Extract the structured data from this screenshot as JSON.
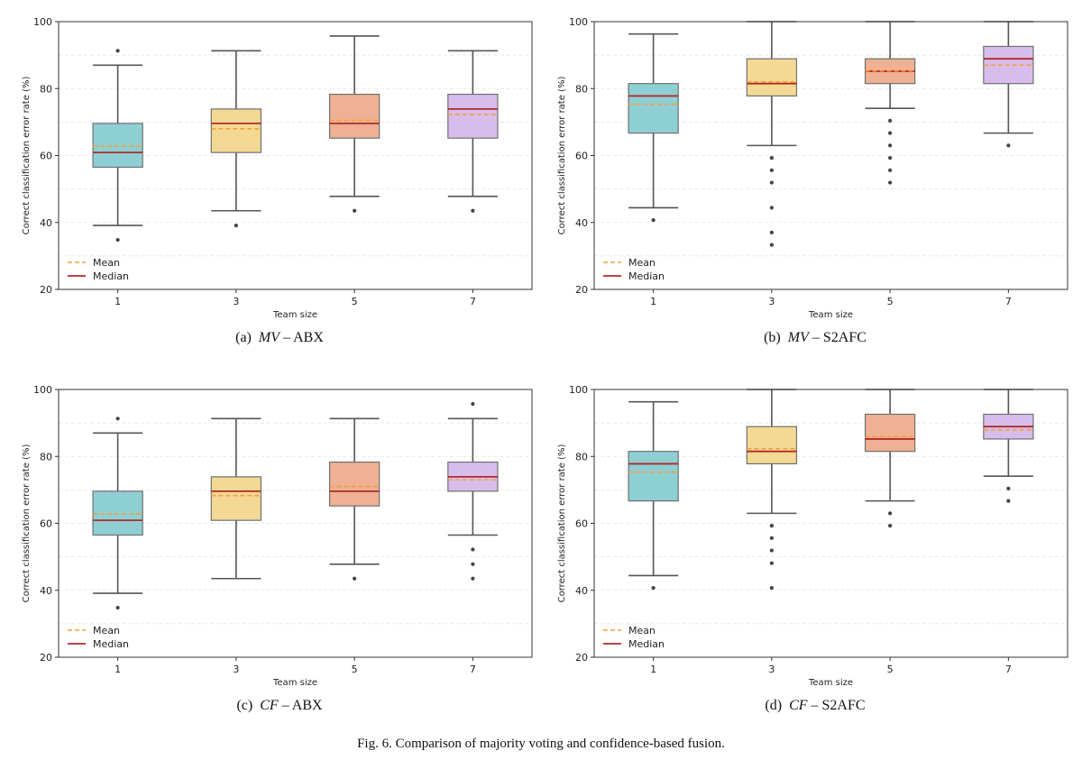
{
  "figure_caption": "Fig. 6.  Comparison of majority voting and confidence-based fusion.",
  "chart_data": [
    {
      "type": "box",
      "caption": {
        "label": "(a)",
        "math": "MV",
        "dash": "–",
        "test": "ABX"
      },
      "xlabel": "Team size",
      "ylabel": "Correct classification error rate (%)",
      "ylim": [
        20,
        100
      ],
      "yticks": [
        20,
        40,
        60,
        80,
        100
      ],
      "categories": [
        "1",
        "3",
        "5",
        "7"
      ],
      "colors": [
        "#8ecfd4",
        "#f3d993",
        "#eeb193",
        "#d8bdec"
      ],
      "legend": {
        "position": "lower-left",
        "mean_label": "Mean",
        "median_label": "Median",
        "mean_color": "#f5a03c",
        "median_color": "#b02a2a"
      },
      "grid": "horizontal-dashed",
      "boxes": [
        {
          "whislo": 39.1,
          "q1": 56.5,
          "med": 60.9,
          "q3": 69.6,
          "whishi": 87.0,
          "mean": 62.8,
          "fliers": [
            91.3,
            34.8
          ]
        },
        {
          "whislo": 43.5,
          "q1": 60.9,
          "med": 69.6,
          "q3": 73.9,
          "whishi": 91.3,
          "mean": 68.0,
          "fliers": [
            39.1
          ]
        },
        {
          "whislo": 47.8,
          "q1": 65.2,
          "med": 69.6,
          "q3": 78.3,
          "whishi": 95.7,
          "mean": 70.5,
          "fliers": [
            43.5
          ]
        },
        {
          "whislo": 47.8,
          "q1": 65.2,
          "med": 73.9,
          "q3": 78.3,
          "whishi": 91.3,
          "mean": 72.2,
          "fliers": [
            43.5
          ]
        }
      ]
    },
    {
      "type": "box",
      "caption": {
        "label": "(b)",
        "math": "MV",
        "dash": "–",
        "test": "S2AFC"
      },
      "xlabel": "Team size",
      "ylabel": "Correct classification error rate (%)",
      "ylim": [
        20,
        100
      ],
      "yticks": [
        20,
        40,
        60,
        80,
        100
      ],
      "categories": [
        "1",
        "3",
        "5",
        "7"
      ],
      "colors": [
        "#8ecfd4",
        "#f3d993",
        "#eeb193",
        "#d8bdec"
      ],
      "legend": {
        "position": "lower-left",
        "mean_label": "Mean",
        "median_label": "Median",
        "mean_color": "#f5a03c",
        "median_color": "#b02a2a"
      },
      "grid": "horizontal-dashed",
      "boxes": [
        {
          "whislo": 44.4,
          "q1": 66.7,
          "med": 77.8,
          "q3": 81.5,
          "whishi": 96.3,
          "mean": 75.3,
          "fliers": [
            40.7
          ]
        },
        {
          "whislo": 63.0,
          "q1": 77.8,
          "med": 81.5,
          "q3": 88.9,
          "whishi": 100.0,
          "mean": 82.0,
          "fliers": [
            59.3,
            55.6,
            51.9,
            44.4,
            37.0,
            33.3
          ]
        },
        {
          "whislo": 74.1,
          "q1": 81.5,
          "med": 85.2,
          "q3": 88.9,
          "whishi": 100.0,
          "mean": 85.3,
          "fliers": [
            70.4,
            66.7,
            63.0,
            59.3,
            55.6,
            51.9
          ]
        },
        {
          "whislo": 66.7,
          "q1": 81.5,
          "med": 88.9,
          "q3": 92.6,
          "whishi": 100.0,
          "mean": 87.0,
          "fliers": [
            63.0
          ]
        }
      ]
    },
    {
      "type": "box",
      "caption": {
        "label": "(c)",
        "math": "CF",
        "dash": "–",
        "test": "ABX"
      },
      "xlabel": "Team size",
      "ylabel": "Correct classification error rate (%)",
      "ylim": [
        20,
        100
      ],
      "yticks": [
        20,
        40,
        60,
        80,
        100
      ],
      "categories": [
        "1",
        "3",
        "5",
        "7"
      ],
      "colors": [
        "#8ecfd4",
        "#f3d993",
        "#eeb193",
        "#d8bdec"
      ],
      "legend": {
        "position": "lower-left",
        "mean_label": "Mean",
        "median_label": "Median",
        "mean_color": "#f5a03c",
        "median_color": "#b02a2a"
      },
      "grid": "horizontal-dashed",
      "boxes": [
        {
          "whislo": 39.1,
          "q1": 56.5,
          "med": 60.9,
          "q3": 69.6,
          "whishi": 87.0,
          "mean": 62.8,
          "fliers": [
            91.3,
            34.8
          ]
        },
        {
          "whislo": 43.5,
          "q1": 60.9,
          "med": 69.6,
          "q3": 73.9,
          "whishi": 91.3,
          "mean": 68.3,
          "fliers": []
        },
        {
          "whislo": 47.8,
          "q1": 65.2,
          "med": 69.6,
          "q3": 78.3,
          "whishi": 91.3,
          "mean": 71.0,
          "fliers": [
            43.5
          ]
        },
        {
          "whislo": 56.5,
          "q1": 69.6,
          "med": 73.9,
          "q3": 78.3,
          "whishi": 91.3,
          "mean": 73.0,
          "fliers": [
            95.7,
            52.2,
            47.8,
            43.5
          ]
        }
      ]
    },
    {
      "type": "box",
      "caption": {
        "label": "(d)",
        "math": "CF",
        "dash": "–",
        "test": "S2AFC"
      },
      "xlabel": "Team size",
      "ylabel": "Correct classification error rate (%)",
      "ylim": [
        20,
        100
      ],
      "yticks": [
        20,
        40,
        60,
        80,
        100
      ],
      "categories": [
        "1",
        "3",
        "5",
        "7"
      ],
      "colors": [
        "#8ecfd4",
        "#f3d993",
        "#eeb193",
        "#d8bdec"
      ],
      "legend": {
        "position": "lower-left",
        "mean_label": "Mean",
        "median_label": "Median",
        "mean_color": "#f5a03c",
        "median_color": "#b02a2a"
      },
      "grid": "horizontal-dashed",
      "boxes": [
        {
          "whislo": 44.4,
          "q1": 66.7,
          "med": 77.8,
          "q3": 81.5,
          "whishi": 96.3,
          "mean": 75.3,
          "fliers": [
            40.7
          ]
        },
        {
          "whislo": 63.0,
          "q1": 77.8,
          "med": 81.5,
          "q3": 88.9,
          "whishi": 100.0,
          "mean": 82.3,
          "fliers": [
            59.3,
            55.6,
            51.9,
            48.1,
            40.7
          ]
        },
        {
          "whislo": 66.7,
          "q1": 81.5,
          "med": 85.2,
          "q3": 92.6,
          "whishi": 100.0,
          "mean": 85.9,
          "fliers": [
            63.0,
            59.3
          ]
        },
        {
          "whislo": 74.1,
          "q1": 85.2,
          "med": 88.9,
          "q3": 92.6,
          "whishi": 100.0,
          "mean": 87.9,
          "fliers": [
            70.4,
            66.7
          ]
        }
      ]
    }
  ]
}
